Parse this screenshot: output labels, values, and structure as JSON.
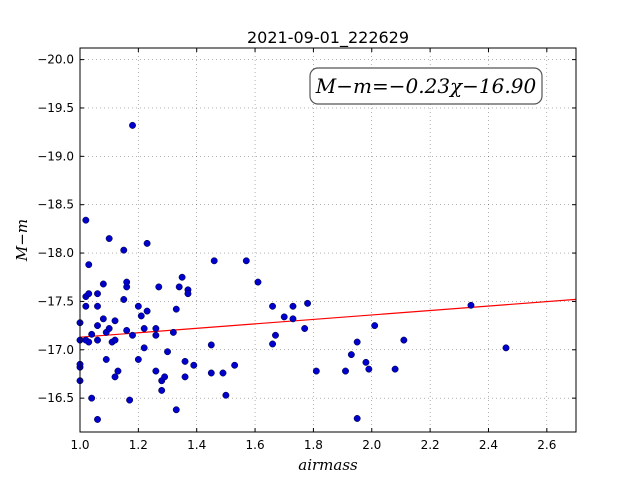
{
  "chart_data": {
    "type": "scatter",
    "title": "2021-09-01_222629",
    "xlabel": "airmass",
    "ylabel": "M−m",
    "xlim": [
      1.0,
      2.7
    ],
    "ylim": [
      -20.12,
      -16.15
    ],
    "y_inverted": true,
    "grid": true,
    "x_ticks": [
      1.0,
      1.2,
      1.4,
      1.6,
      1.8,
      2.0,
      2.2,
      2.4,
      2.6
    ],
    "x_tick_labels": [
      "1.0",
      "1.2",
      "1.4",
      "1.6",
      "1.8",
      "2.0",
      "2.2",
      "2.4",
      "2.6"
    ],
    "y_ticks": [
      -16.5,
      -17.0,
      -17.5,
      -18.0,
      -18.5,
      -19.0,
      -19.5,
      -20.0
    ],
    "y_tick_labels": [
      "−16.5",
      "−17.0",
      "−17.5",
      "−18.0",
      "−18.5",
      "−19.0",
      "−19.5",
      "−20.0"
    ],
    "annotation": "M−m=−0.23χ−16.90",
    "fit_line": {
      "slope": -0.23,
      "intercept": -16.9,
      "color": "#ff0000"
    },
    "marker_color": "#0000cc",
    "series": [
      {
        "points": [
          [
            1.0,
            -16.68
          ],
          [
            1.0,
            -16.82
          ],
          [
            1.0,
            -16.85
          ],
          [
            1.0,
            -17.1
          ],
          [
            1.0,
            -17.28
          ],
          [
            1.02,
            -17.1
          ],
          [
            1.02,
            -17.45
          ],
          [
            1.02,
            -17.55
          ],
          [
            1.02,
            -18.34
          ],
          [
            1.03,
            -17.08
          ],
          [
            1.03,
            -17.58
          ],
          [
            1.03,
            -17.88
          ],
          [
            1.04,
            -16.5
          ],
          [
            1.04,
            -17.16
          ],
          [
            1.06,
            -16.28
          ],
          [
            1.06,
            -17.1
          ],
          [
            1.06,
            -17.25
          ],
          [
            1.06,
            -17.45
          ],
          [
            1.06,
            -17.58
          ],
          [
            1.08,
            -17.32
          ],
          [
            1.08,
            -17.68
          ],
          [
            1.09,
            -16.9
          ],
          [
            1.09,
            -17.18
          ],
          [
            1.1,
            -17.22
          ],
          [
            1.1,
            -18.15
          ],
          [
            1.11,
            -17.08
          ],
          [
            1.12,
            -16.72
          ],
          [
            1.12,
            -17.1
          ],
          [
            1.12,
            -17.3
          ],
          [
            1.13,
            -16.78
          ],
          [
            1.15,
            -17.52
          ],
          [
            1.15,
            -18.03
          ],
          [
            1.16,
            -17.2
          ],
          [
            1.16,
            -17.65
          ],
          [
            1.16,
            -17.7
          ],
          [
            1.17,
            -16.48
          ],
          [
            1.18,
            -17.15
          ],
          [
            1.18,
            -19.32
          ],
          [
            1.2,
            -16.9
          ],
          [
            1.2,
            -17.45
          ],
          [
            1.21,
            -17.35
          ],
          [
            1.22,
            -17.22
          ],
          [
            1.22,
            -17.02
          ],
          [
            1.23,
            -17.4
          ],
          [
            1.23,
            -18.1
          ],
          [
            1.26,
            -16.78
          ],
          [
            1.26,
            -17.15
          ],
          [
            1.26,
            -17.22
          ],
          [
            1.27,
            -17.65
          ],
          [
            1.28,
            -16.58
          ],
          [
            1.28,
            -16.68
          ],
          [
            1.29,
            -16.72
          ],
          [
            1.3,
            -16.98
          ],
          [
            1.32,
            -17.18
          ],
          [
            1.33,
            -17.42
          ],
          [
            1.33,
            -16.38
          ],
          [
            1.34,
            -17.65
          ],
          [
            1.35,
            -17.75
          ],
          [
            1.36,
            -16.88
          ],
          [
            1.36,
            -16.72
          ],
          [
            1.37,
            -17.62
          ],
          [
            1.37,
            -17.58
          ],
          [
            1.39,
            -16.84
          ],
          [
            1.45,
            -16.76
          ],
          [
            1.45,
            -17.05
          ],
          [
            1.46,
            -17.92
          ],
          [
            1.49,
            -16.76
          ],
          [
            1.5,
            -16.53
          ],
          [
            1.53,
            -16.84
          ],
          [
            1.57,
            -17.92
          ],
          [
            1.61,
            -17.7
          ],
          [
            1.66,
            -17.06
          ],
          [
            1.66,
            -17.45
          ],
          [
            1.67,
            -17.15
          ],
          [
            1.7,
            -17.34
          ],
          [
            1.73,
            -17.32
          ],
          [
            1.73,
            -17.45
          ],
          [
            1.77,
            -17.22
          ],
          [
            1.78,
            -17.48
          ],
          [
            1.81,
            -16.78
          ],
          [
            1.91,
            -16.78
          ],
          [
            1.93,
            -16.95
          ],
          [
            1.95,
            -17.08
          ],
          [
            1.95,
            -16.29
          ],
          [
            1.98,
            -16.87
          ],
          [
            1.99,
            -16.8
          ],
          [
            2.01,
            -17.25
          ],
          [
            2.08,
            -16.8
          ],
          [
            2.11,
            -17.1
          ],
          [
            2.34,
            -17.46
          ],
          [
            2.46,
            -17.02
          ]
        ]
      }
    ]
  }
}
